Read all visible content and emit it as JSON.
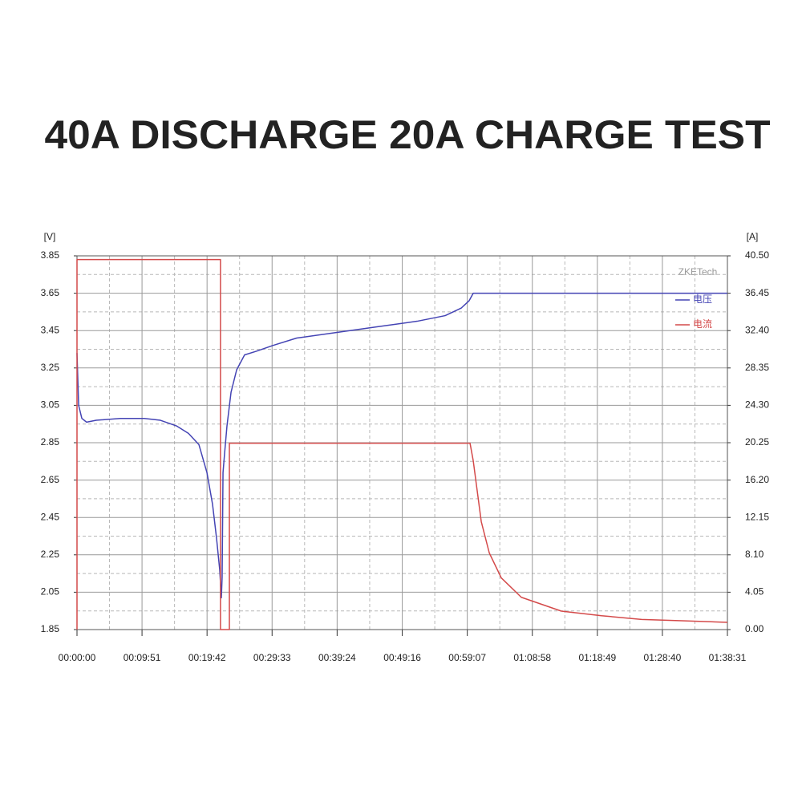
{
  "chart_data": {
    "type": "line",
    "title": "40A DISCHARGE 20A CHARGE TEST",
    "y_label": "[V]",
    "y2_label": "[A]",
    "watermark": "ZKETech",
    "grid": true,
    "legend": "upper right",
    "xlim": [
      0,
      5911
    ],
    "xticks": [
      {
        "value": 0,
        "label": "00:00:00"
      },
      {
        "value": 591,
        "label": "00:09:51"
      },
      {
        "value": 1182,
        "label": "00:19:42"
      },
      {
        "value": 1773,
        "label": "00:29:33"
      },
      {
        "value": 2364,
        "label": "00:39:24"
      },
      {
        "value": 2956,
        "label": "00:49:16"
      },
      {
        "value": 3547,
        "label": "00:59:07"
      },
      {
        "value": 4138,
        "label": "01:08:58"
      },
      {
        "value": 4729,
        "label": "01:18:49"
      },
      {
        "value": 5320,
        "label": "01:28:40"
      },
      {
        "value": 5911,
        "label": "01:38:31"
      }
    ],
    "ylim": [
      1.85,
      3.85
    ],
    "yticks": [
      1.85,
      2.05,
      2.25,
      2.45,
      2.65,
      2.85,
      3.05,
      3.25,
      3.45,
      3.65,
      3.85
    ],
    "y2lim": [
      0,
      40.5
    ],
    "y2ticks": [
      {
        "value": 0,
        "label": "0.00"
      },
      4.05,
      {
        "value": 8.1,
        "label": "8.10"
      },
      12.15,
      {
        "value": 16.2,
        "label": "16.20"
      },
      20.25,
      {
        "value": 24.3,
        "label": "24.30"
      },
      28.35,
      {
        "value": 32.4,
        "label": "32.40"
      },
      36.45,
      {
        "value": 40.5,
        "label": "40.50"
      }
    ],
    "series": [
      {
        "name": "电压",
        "color": "#4444b4",
        "x": [
          0,
          15,
          44,
          87,
          175,
          394,
          612,
          758,
          904,
          1013,
          1108,
          1181,
          1232,
          1268,
          1297,
          1312,
          1319,
          1327,
          1341,
          1363,
          1400,
          1451,
          1523,
          1633,
          1779,
          1997,
          2362,
          2726,
          3091,
          3346,
          3491,
          3564,
          3601,
          5911
        ],
        "values": [
          3.33,
          3.05,
          2.98,
          2.96,
          2.97,
          2.98,
          2.98,
          2.97,
          2.94,
          2.9,
          2.84,
          2.69,
          2.52,
          2.34,
          2.17,
          2.02,
          2.13,
          2.69,
          2.79,
          2.94,
          3.12,
          3.24,
          3.32,
          3.34,
          3.37,
          3.41,
          3.44,
          3.47,
          3.5,
          3.53,
          3.57,
          3.61,
          3.65,
          3.65
        ]
      },
      {
        "name": "电流",
        "color": "#d44a4a",
        "axis": "y2",
        "x": [
          0,
          0,
          1304,
          1304,
          1385,
          1385,
          3572,
          3601,
          3674,
          3747,
          3856,
          4038,
          4402,
          4767,
          5131,
          5496,
          5911
        ],
        "values": [
          0,
          40.1,
          40.1,
          0,
          0,
          20.2,
          20.2,
          18.3,
          11.7,
          8.3,
          5.6,
          3.5,
          2.0,
          1.5,
          1.1,
          0.96,
          0.78
        ]
      }
    ]
  }
}
